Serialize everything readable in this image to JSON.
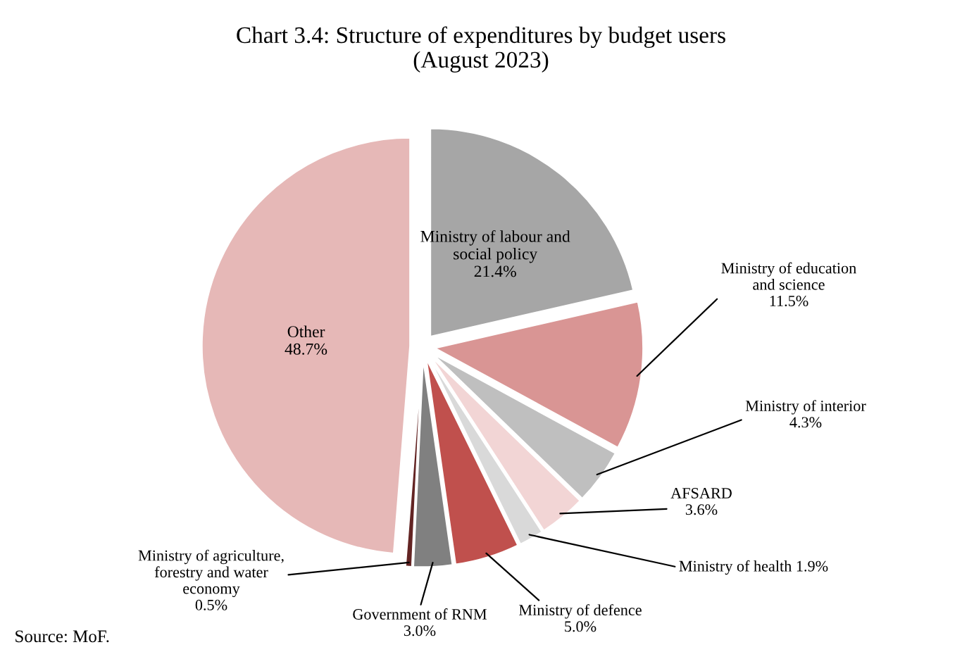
{
  "chart_data": {
    "type": "pie",
    "title": "Chart 3.4: Structure of expenditures by budget users\n(August 2023)",
    "categories": [
      "Ministry of labour and\nsocial policy",
      "Ministry of education\nand science",
      "Ministry of interior",
      "AFSARD",
      "Ministry of health",
      "Ministry of defence",
      "Government of RNM",
      "Ministry of agriculture,\nforestry and water\neconomy",
      "Other"
    ],
    "values": [
      21.4,
      11.5,
      4.3,
      3.6,
      1.9,
      5.0,
      3.0,
      0.5,
      48.7
    ],
    "value_labels": [
      "21.4%",
      "11.5%",
      "4.3%",
      "3.6%",
      "1.9%",
      "5.0%",
      "3.0%",
      "0.5%",
      "48.7%"
    ],
    "colors": [
      "#a6a6a6",
      "#d99594",
      "#bfbfbf",
      "#f2d5d5",
      "#d9d9d9",
      "#c0504d",
      "#808080",
      "#632423",
      "#e6b8b7"
    ],
    "annotations": [
      "Source: MoF."
    ]
  }
}
